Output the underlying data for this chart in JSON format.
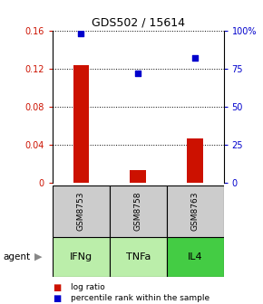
{
  "title": "GDS502 / 15614",
  "samples": [
    "GSM8753",
    "GSM8758",
    "GSM8763"
  ],
  "agents": [
    "IFNg",
    "TNFa",
    "IL4"
  ],
  "log_ratio": [
    0.123,
    0.013,
    0.046
  ],
  "percentile_rank": [
    98,
    72,
    82
  ],
  "bar_color": "#cc1100",
  "dot_color": "#0000cc",
  "ylim_left": [
    0,
    0.16
  ],
  "ylim_right": [
    0,
    100
  ],
  "yticks_left": [
    0,
    0.04,
    0.08,
    0.12,
    0.16
  ],
  "ytick_labels_left": [
    "0",
    "0.04",
    "0.08",
    "0.12",
    "0.16"
  ],
  "yticks_right": [
    0,
    25,
    50,
    75,
    100
  ],
  "ytick_labels_right": [
    "0",
    "25",
    "50",
    "75",
    "100%"
  ],
  "sample_box_color": "#cccccc",
  "agent_colors": [
    "#bbeeaa",
    "#bbeeaa",
    "#44cc44"
  ],
  "legend_log_ratio": "log ratio",
  "legend_percentile": "percentile rank within the sample",
  "agent_label": "agent",
  "background_color": "#ffffff"
}
